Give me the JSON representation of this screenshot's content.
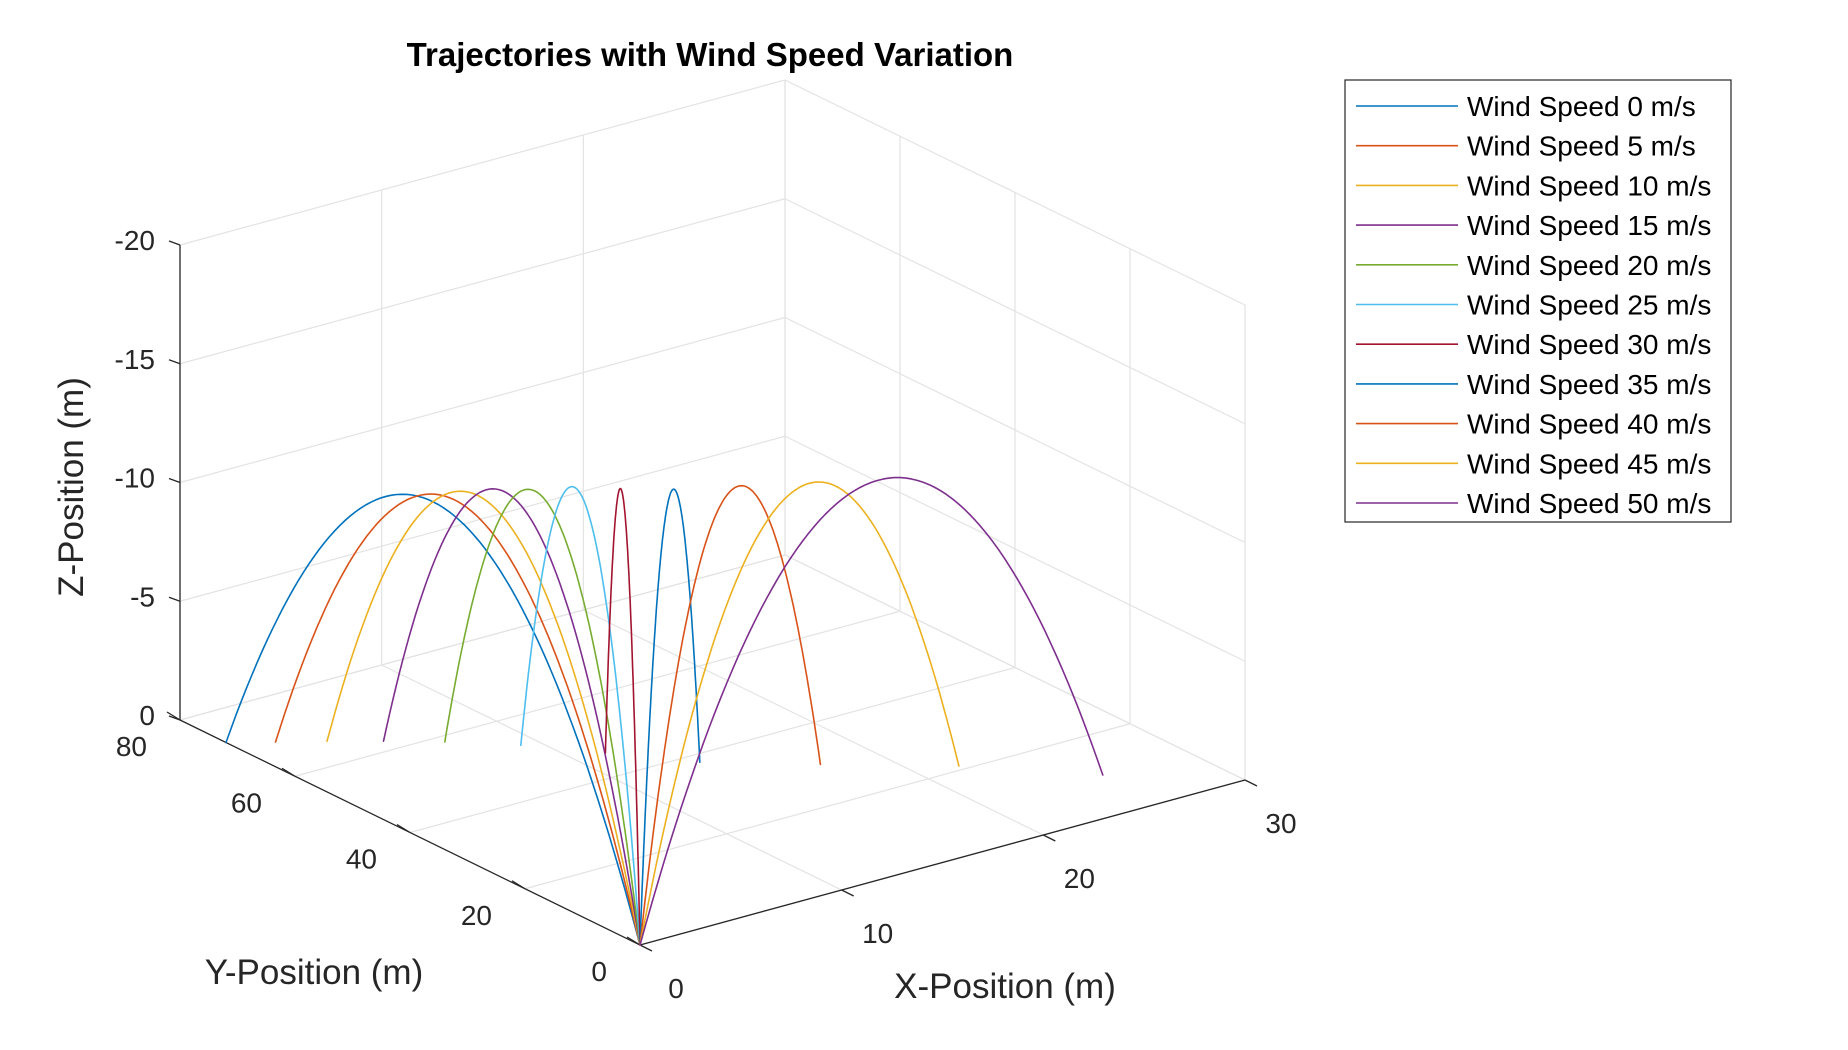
{
  "chart_data": {
    "type": "line",
    "projection": "3d",
    "title": "Trajectories with Wind Speed Variation",
    "xlabel": "X-Position (m)",
    "ylabel": "Y-Position (m)",
    "zlabel": "Z-Position (m)",
    "xlim": [
      0,
      30
    ],
    "ylim": [
      0,
      80
    ],
    "zlim": [
      0,
      -20
    ],
    "xticks": [
      "0",
      "10",
      "20",
      "30"
    ],
    "yticks": [
      "0",
      "20",
      "40",
      "60",
      "80"
    ],
    "zticks": [
      "0",
      "-5",
      "-10",
      "-15",
      "-20"
    ],
    "grid": true,
    "legend_position": "outside-top-right",
    "series": [
      {
        "name": "Wind Speed 0 m/s",
        "color": "#0072BD",
        "end": [
          0.0,
          72.0
        ],
        "apex": [
          0.0,
          35.0
        ],
        "apex_z": -14.4
      },
      {
        "name": "Wind Speed 5 m/s",
        "color": "#D95319",
        "end": [
          1.6,
          69.0
        ],
        "apex": [
          0.77,
          33.8
        ],
        "apex_z": -14.4
      },
      {
        "name": "Wind Speed 10 m/s",
        "color": "#EDB120",
        "end": [
          3.3,
          66.0
        ],
        "apex": [
          1.59,
          32.6
        ],
        "apex_z": -14.5
      },
      {
        "name": "Wind Speed 15 m/s",
        "color": "#7E2F8E",
        "end": [
          5.1,
          62.5
        ],
        "apex": [
          2.47,
          31.0
        ],
        "apex_z": -14.6
      },
      {
        "name": "Wind Speed 20 m/s",
        "color": "#77AC30",
        "end": [
          7.0,
          58.5
        ],
        "apex": [
          3.41,
          29.2
        ],
        "apex_z": -14.6
      },
      {
        "name": "Wind Speed 25 m/s",
        "color": "#4DBEEE",
        "end": [
          9.2,
          53.0
        ],
        "apex": [
          4.49,
          26.6
        ],
        "apex_z": -14.8
      },
      {
        "name": "Wind Speed 30 m/s",
        "color": "#A2142F",
        "end": [
          11.4,
          46.0
        ],
        "apex": [
          5.59,
          23.2
        ],
        "apex_z": -14.9
      },
      {
        "name": "Wind Speed 35 m/s",
        "color": "#0072BD",
        "end": [
          13.8,
          38.0
        ],
        "apex": [
          6.79,
          19.2
        ],
        "apex_z": -15.1
      },
      {
        "name": "Wind Speed 40 m/s",
        "color": "#D95319",
        "end": [
          17.5,
          30.0
        ],
        "apex": [
          8.63,
          15.2
        ],
        "apex_z": -15.3
      },
      {
        "name": "Wind Speed 45 m/s",
        "color": "#EDB120",
        "end": [
          21.8,
          21.0
        ],
        "apex": [
          10.78,
          10.7
        ],
        "apex_z": -15.5
      },
      {
        "name": "Wind Speed 50 m/s",
        "color": "#7E2F8E",
        "end": [
          25.8,
          10.0
        ],
        "apex": [
          12.79,
          5.1
        ],
        "apex_z": -15.9
      }
    ]
  }
}
